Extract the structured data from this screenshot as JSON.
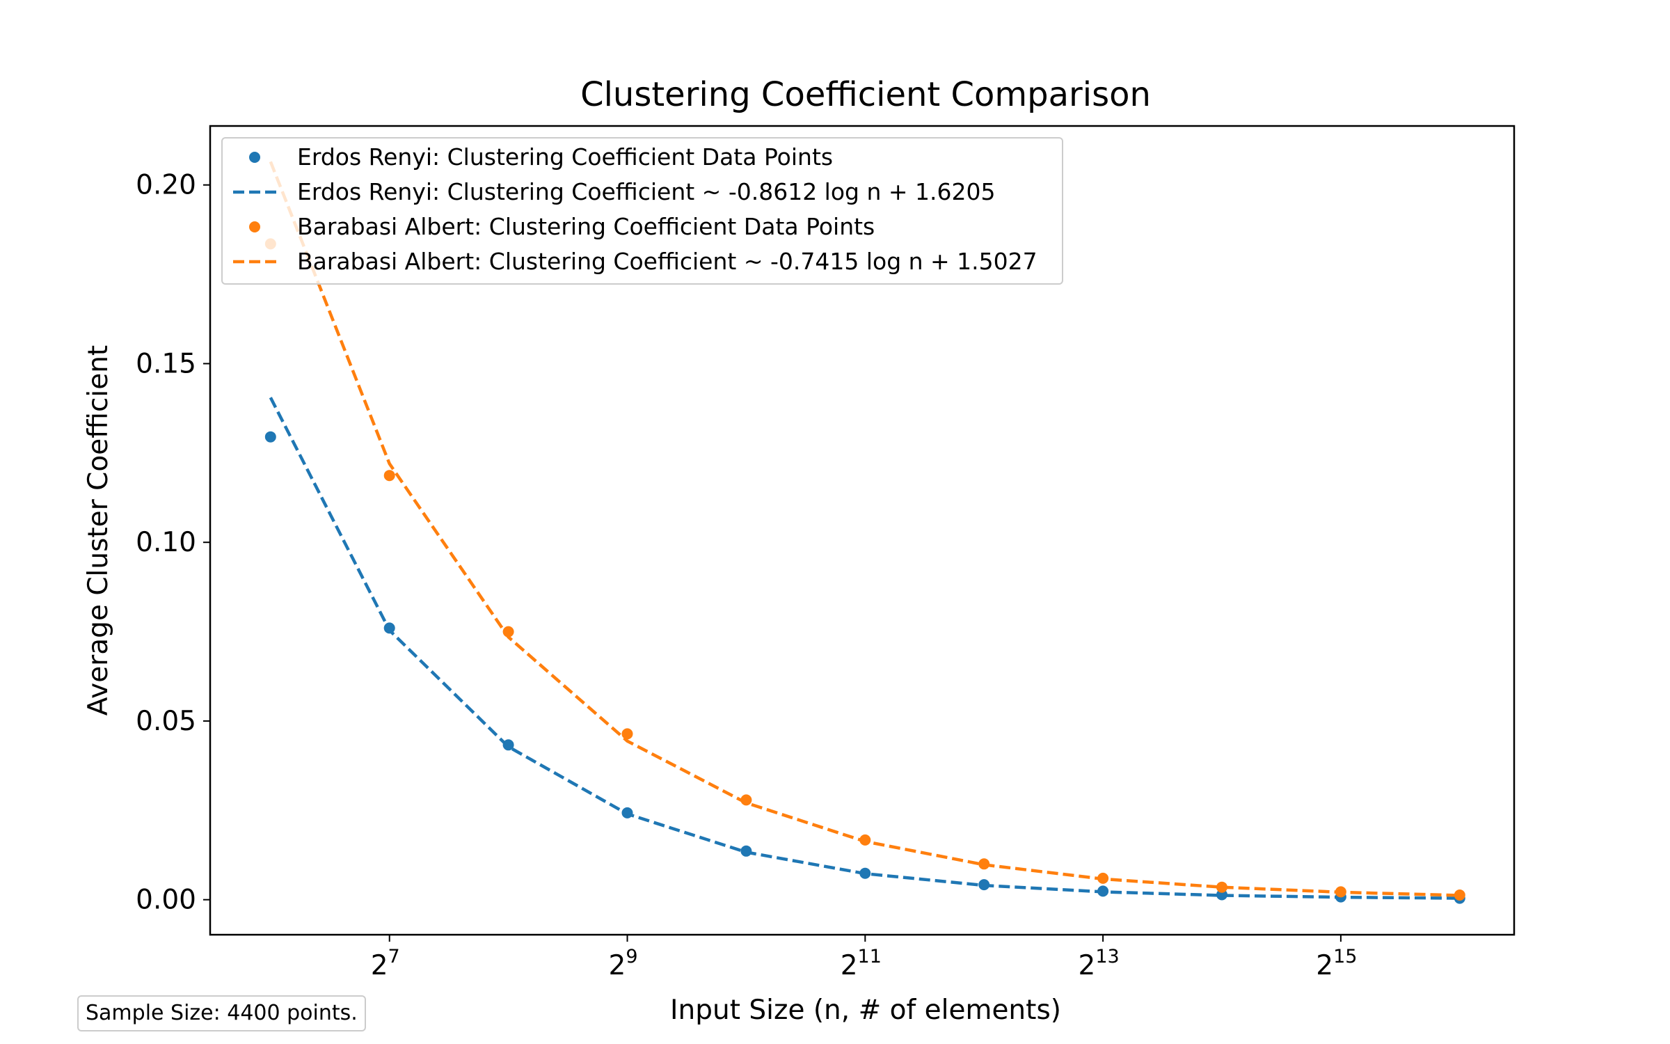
{
  "chart_data": {
    "type": "line",
    "title": "Clustering Coefficient Comparison",
    "xlabel": "Input Size (n, # of elements)",
    "ylabel": "Average Cluster Coefficient",
    "x_scale": "log2",
    "x": [
      64,
      128,
      256,
      512,
      1024,
      2048,
      4096,
      8192,
      16384,
      32768,
      65536
    ],
    "x_ticks": [
      {
        "base": "2",
        "exp": "7",
        "value": 128
      },
      {
        "base": "2",
        "exp": "9",
        "value": 512
      },
      {
        "base": "2",
        "exp": "11",
        "value": 2048
      },
      {
        "base": "2",
        "exp": "13",
        "value": 8192
      },
      {
        "base": "2",
        "exp": "15",
        "value": 32768
      }
    ],
    "y_ticks": [
      "0.00",
      "0.05",
      "0.10",
      "0.15",
      "0.20"
    ],
    "xlim": [
      45,
      90000
    ],
    "ylim": [
      -0.0098,
      0.2165
    ],
    "grid": false,
    "legend_position": "top-left",
    "series": [
      {
        "name": "Erdos Renyi: Clustering Coefficient Data Points",
        "kind": "points",
        "color": "#1f77b4",
        "values": [
          0.1295,
          0.076,
          0.0433,
          0.0243,
          0.0136,
          0.0074,
          0.0042,
          0.0024,
          0.0014,
          0.0008,
          0.0004
        ]
      },
      {
        "name": "Erdos Renyi: Clustering Coefficient ~ -0.8612 log n + 1.6205",
        "kind": "dashed-line",
        "color": "#1f77b4",
        "values": [
          0.1405,
          0.0754,
          0.0428,
          0.024,
          0.0133,
          0.0073,
          0.004,
          0.0022,
          0.0012,
          0.0007,
          0.0004
        ]
      },
      {
        "name": "Barabasi Albert: Clustering Coefficient Data Points",
        "kind": "points",
        "color": "#ff7f0e",
        "values": [
          0.1835,
          0.1187,
          0.075,
          0.0464,
          0.0279,
          0.0167,
          0.01,
          0.006,
          0.0035,
          0.0022,
          0.0013
        ]
      },
      {
        "name": "Barabasi Albert: Clustering Coefficient ~ -0.7415 log n + 1.5027",
        "kind": "dashed-line",
        "color": "#ff7f0e",
        "values": [
          0.2065,
          0.122,
          0.0735,
          0.0444,
          0.0271,
          0.0163,
          0.0098,
          0.0058,
          0.0035,
          0.0021,
          0.0012
        ]
      }
    ]
  },
  "annotation": {
    "sample_size": "Sample Size: 4400 points."
  }
}
